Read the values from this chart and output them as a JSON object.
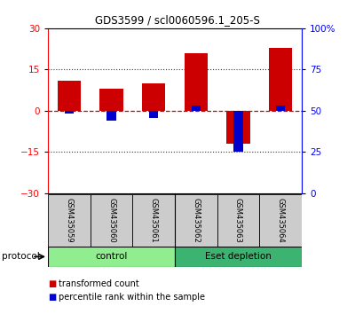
{
  "title": "GDS3599 / scl0060596.1_205-S",
  "samples": [
    "GSM435059",
    "GSM435060",
    "GSM435061",
    "GSM435062",
    "GSM435063",
    "GSM435064"
  ],
  "red_bars": [
    11.0,
    8.0,
    10.0,
    21.0,
    -12.0,
    23.0
  ],
  "blue_bars": [
    -1.0,
    -3.5,
    -2.5,
    2.0,
    -15.0,
    2.0
  ],
  "ylim": [
    -30,
    30
  ],
  "yticks_left": [
    -30,
    -15,
    0,
    15,
    30
  ],
  "yticks_right_labels": [
    "0",
    "25",
    "50",
    "75",
    "100%"
  ],
  "groups": [
    {
      "label": "control",
      "start": 0,
      "end": 3,
      "color": "#90EE90"
    },
    {
      "label": "Eset depletion",
      "start": 3,
      "end": 6,
      "color": "#3CB371"
    }
  ],
  "protocol_label": "protocol",
  "red_color": "#CC0000",
  "blue_color": "#0000CC",
  "zero_line_color": "#CC0000",
  "dotted_line_color": "#333333",
  "background_color": "#ffffff",
  "legend_red_label": "transformed count",
  "legend_blue_label": "percentile rank within the sample",
  "sample_box_color": "#cccccc",
  "spine_color": "#000000"
}
